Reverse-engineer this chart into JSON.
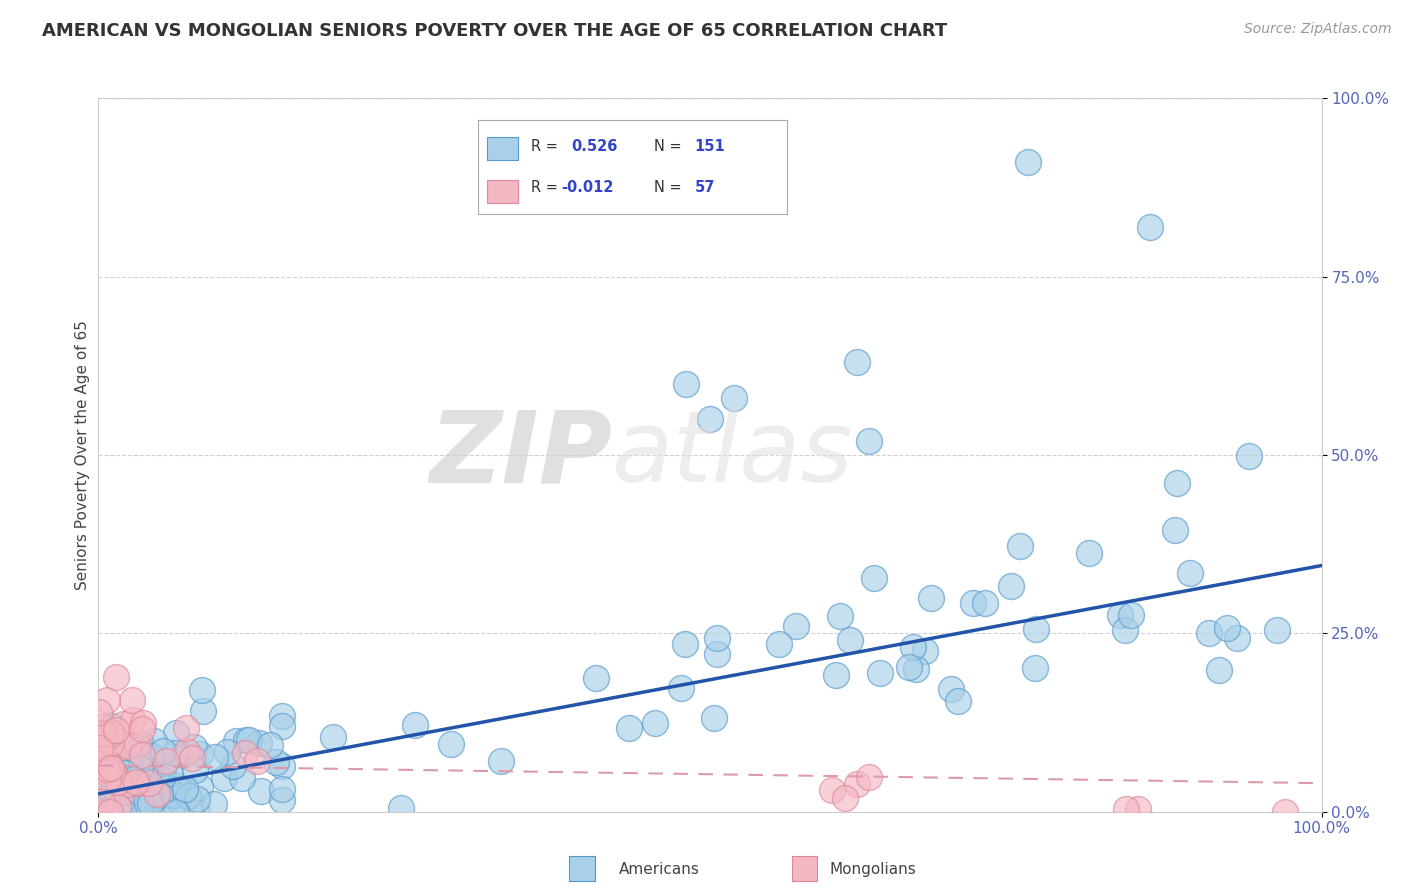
{
  "title": "AMERICAN VS MONGOLIAN SENIORS POVERTY OVER THE AGE OF 65 CORRELATION CHART",
  "source": "Source: ZipAtlas.com",
  "ylabel": "Seniors Poverty Over the Age of 65",
  "xlim": [
    0,
    1
  ],
  "ylim": [
    0,
    1
  ],
  "xtick_labels": [
    "0.0%",
    "100.0%"
  ],
  "ytick_labels": [
    "0.0%",
    "25.0%",
    "50.0%",
    "75.0%",
    "100.0%"
  ],
  "ytick_positions": [
    0,
    0.25,
    0.5,
    0.75,
    1.0
  ],
  "american_R": 0.526,
  "american_N": 151,
  "mongolian_R": -0.012,
  "mongolian_N": 57,
  "american_color": "#a8d0e8",
  "mongolian_color": "#f4b8c4",
  "american_edge_color": "#5599cc",
  "mongolian_edge_color": "#dd8899",
  "american_line_color": "#2255aa",
  "mongolian_line_color": "#dd99aa",
  "background_color": "#ffffff",
  "grid_color": "#cccccc",
  "title_fontsize": 13,
  "source_fontsize": 10,
  "american_slope": 0.32,
  "american_intercept": 0.025,
  "mongolian_slope": -0.025,
  "mongolian_intercept": 0.065
}
